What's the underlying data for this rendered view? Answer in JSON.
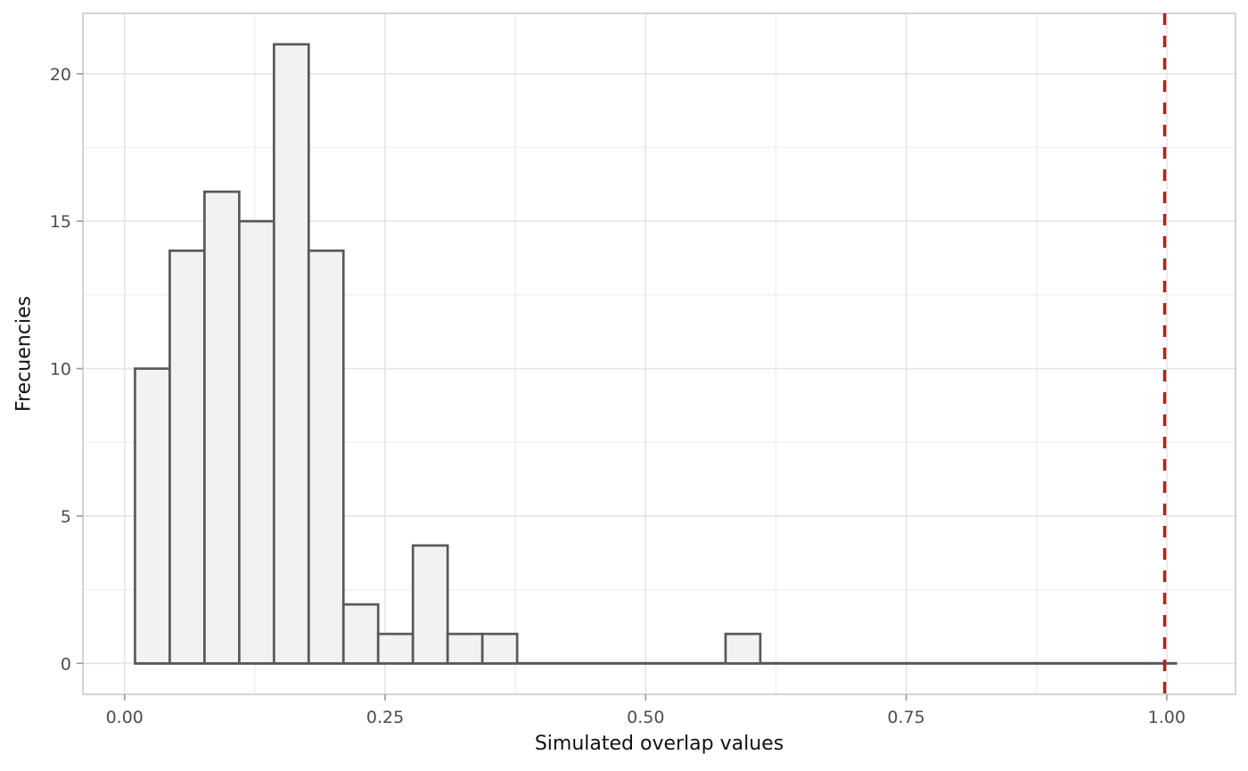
{
  "figure": {
    "x_axis_title": "Simulated overlap values",
    "y_axis_title": "Frecuencies"
  },
  "chart_data": {
    "type": "bar",
    "subtype": "histogram",
    "title": "",
    "xlabel": "Simulated overlap values",
    "ylabel": "Frecuencies",
    "bin_start": 0.01,
    "bin_width": 0.0333333,
    "counts": [
      10,
      14,
      16,
      15,
      21,
      14,
      2,
      1,
      4,
      1,
      1,
      0,
      0,
      0,
      0,
      0,
      0,
      1,
      0,
      0,
      0,
      0,
      0,
      0,
      0,
      0,
      0,
      0,
      0,
      0
    ],
    "total_count": 100,
    "x_tick_labels": [
      "0.00",
      "0.25",
      "0.50",
      "0.75",
      "1.00"
    ],
    "x_tick_values": [
      0,
      0.25,
      0.5,
      0.75,
      1.0
    ],
    "x_minor_values": [
      0.125,
      0.375,
      0.625,
      0.875
    ],
    "y_tick_labels": [
      "0",
      "5",
      "10",
      "15",
      "20"
    ],
    "y_tick_values": [
      0,
      5,
      10,
      15,
      20
    ],
    "y_minor_values": [
      2.5,
      7.5,
      12.5,
      17.5
    ],
    "xlim": [
      -0.04,
      1.066
    ],
    "ylim": [
      -1.05,
      22.05
    ],
    "grid": "on",
    "legend": "none",
    "vline": {
      "x": 0.998,
      "color": "#B22222",
      "style": "dashed"
    },
    "colors": {
      "bar_fill": "#F2F2F2",
      "bar_stroke": "#595959",
      "baseline": "#555555",
      "grid_major": "#E4E4E4",
      "grid_minor": "#EFEFEF",
      "panel_border": "#C9C9C9",
      "tick_mark": "#999999",
      "tick_label": "#4D4D4D"
    }
  }
}
